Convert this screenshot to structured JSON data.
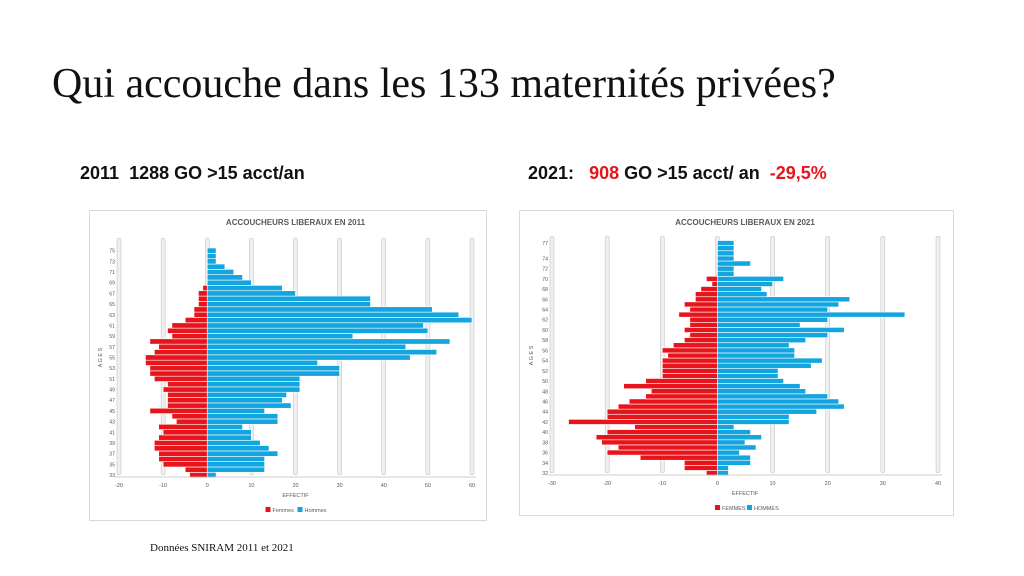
{
  "slide": {
    "title": "Qui accouche dans les 133 maternités privées?",
    "left_subtitle": {
      "year": "2011",
      "text": "1288 GO >15 acct/an"
    },
    "right_subtitle": {
      "year": "2021:",
      "count": "908",
      "text": "GO >15 acct/ an",
      "change": "-29,5%"
    },
    "source": "Données SNIRAM 2011 et 2021"
  },
  "colors": {
    "femmes": "#e8141b",
    "hommes": "#12a5e0",
    "highlight": "#e8141b"
  },
  "chart_data": [
    {
      "type": "bar",
      "orientation": "population-pyramid",
      "title": "ACCOUCHEURS LIBERAUX EN 2011",
      "xlabel": "EFFECTIF",
      "ylabel": "A G E S",
      "xlim": [
        -20,
        60
      ],
      "xticks": [
        -20,
        -10,
        0,
        10,
        20,
        30,
        40,
        50,
        60
      ],
      "ylim": [
        33,
        77
      ],
      "yticks": [
        33,
        35,
        37,
        39,
        41,
        43,
        45,
        47,
        49,
        51,
        53,
        55,
        57,
        59,
        61,
        63,
        65,
        67,
        69,
        71,
        73,
        75
      ],
      "legend": [
        "Femmes",
        "Hommes"
      ],
      "ages": [
        33,
        34,
        35,
        36,
        37,
        38,
        39,
        40,
        41,
        42,
        43,
        44,
        45,
        46,
        47,
        48,
        49,
        50,
        51,
        52,
        53,
        54,
        55,
        56,
        57,
        58,
        59,
        60,
        61,
        62,
        63,
        64,
        65,
        66,
        67,
        68,
        69,
        70,
        71,
        72,
        73,
        74,
        75,
        76
      ],
      "series": [
        {
          "name": "Femmes",
          "values": [
            4,
            5,
            10,
            11,
            11,
            12,
            12,
            11,
            10,
            11,
            7,
            8,
            13,
            9,
            9,
            9,
            10,
            9,
            12,
            13,
            13,
            14,
            14,
            12,
            11,
            13,
            8,
            9,
            8,
            5,
            3,
            3,
            2,
            2,
            2,
            1,
            0,
            0,
            0,
            0,
            0,
            0,
            0,
            0
          ]
        },
        {
          "name": "Hommes",
          "values": [
            2,
            13,
            13,
            13,
            16,
            14,
            12,
            10,
            10,
            8,
            16,
            16,
            13,
            19,
            17,
            18,
            21,
            21,
            21,
            30,
            30,
            25,
            46,
            52,
            45,
            55,
            33,
            50,
            49,
            60,
            57,
            51,
            37,
            37,
            20,
            17,
            10,
            8,
            6,
            4,
            2,
            2,
            2,
            0
          ]
        }
      ]
    },
    {
      "type": "bar",
      "orientation": "population-pyramid",
      "title": "ACCOUCHEURS LIBERAUX EN 2021",
      "xlabel": "EFFECTIF",
      "ylabel": "A G E S",
      "xlim": [
        -30,
        40
      ],
      "xticks": [
        -30,
        -20,
        -10,
        0,
        10,
        20,
        30,
        40
      ],
      "ylim": [
        32,
        78
      ],
      "yticks": [
        32,
        34,
        36,
        38,
        40,
        42,
        44,
        46,
        48,
        50,
        52,
        54,
        56,
        58,
        60,
        62,
        64,
        66,
        68,
        70,
        72,
        74,
        77
      ],
      "legend": [
        "FEMMES",
        "HOMMES"
      ],
      "ages": [
        32,
        33,
        34,
        35,
        36,
        37,
        38,
        39,
        40,
        41,
        42,
        43,
        44,
        45,
        46,
        47,
        48,
        49,
        50,
        51,
        52,
        53,
        54,
        55,
        56,
        57,
        58,
        59,
        60,
        61,
        62,
        63,
        64,
        65,
        66,
        67,
        68,
        69,
        70,
        71,
        72,
        73,
        74,
        75,
        76,
        77
      ],
      "series": [
        {
          "name": "Femmes",
          "values": [
            2,
            6,
            6,
            14,
            20,
            18,
            21,
            22,
            20,
            15,
            27,
            20,
            20,
            18,
            16,
            13,
            12,
            17,
            13,
            10,
            10,
            10,
            10,
            9,
            10,
            8,
            6,
            5,
            6,
            5,
            5,
            7,
            5,
            6,
            4,
            4,
            3,
            1,
            2,
            0,
            0,
            0,
            0,
            0,
            0,
            0
          ]
        },
        {
          "name": "Hommes",
          "values": [
            2,
            2,
            6,
            6,
            4,
            7,
            5,
            8,
            6,
            3,
            13,
            13,
            18,
            23,
            22,
            20,
            16,
            15,
            12,
            11,
            11,
            17,
            19,
            14,
            14,
            13,
            16,
            20,
            23,
            15,
            20,
            34,
            20,
            22,
            24,
            9,
            8,
            10,
            12,
            3,
            3,
            6,
            3,
            3,
            3,
            3
          ]
        }
      ]
    }
  ]
}
